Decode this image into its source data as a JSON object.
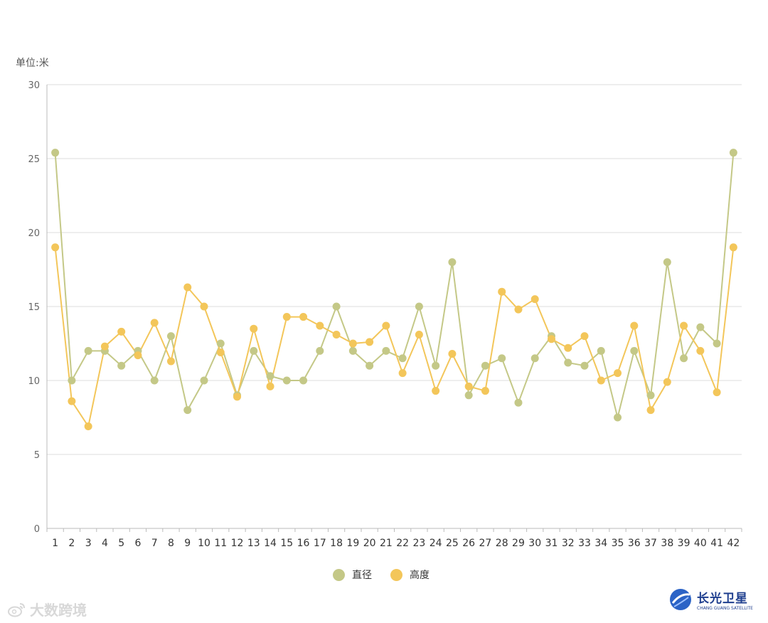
{
  "unit_label": "单位:米",
  "legend": [
    {
      "label": "直径",
      "color": "#c4c887"
    },
    {
      "label": "高度",
      "color": "#f3c65a"
    }
  ],
  "watermark_left": {
    "text": "大数跨境",
    "icon": "weibo-icon"
  },
  "watermark_right": {
    "text": "长光卫星",
    "subtext": "CHANG GUANG SATELLITE",
    "icon": "satellite-logo-icon"
  },
  "chart_data": {
    "type": "line",
    "title": "",
    "xlabel": "",
    "ylabel": "单位:米",
    "categories": [
      "1",
      "2",
      "3",
      "4",
      "5",
      "6",
      "7",
      "8",
      "9",
      "10",
      "11",
      "12",
      "13",
      "14",
      "15",
      "16",
      "17",
      "18",
      "19",
      "20",
      "21",
      "22",
      "23",
      "24",
      "25",
      "26",
      "27",
      "28",
      "29",
      "30",
      "31",
      "32",
      "33",
      "34",
      "35",
      "36",
      "37",
      "38",
      "39",
      "40",
      "41",
      "42"
    ],
    "ylim": [
      0,
      30
    ],
    "yticks": [
      0,
      5,
      10,
      15,
      20,
      25,
      30
    ],
    "grid": true,
    "legend_position": "bottom",
    "series": [
      {
        "name": "直径",
        "color": "#c4c887",
        "values": [
          25.4,
          10,
          12,
          12,
          11,
          12,
          10,
          13,
          8,
          10,
          12.5,
          9,
          12,
          10.3,
          10,
          10,
          12,
          15,
          12,
          11,
          12,
          11.5,
          15,
          11,
          18,
          9,
          11,
          11.5,
          8.5,
          11.5,
          13,
          11.2,
          11,
          12,
          7.5,
          12,
          9,
          18,
          11.5,
          13.6,
          12.5,
          25.4
        ]
      },
      {
        "name": "高度",
        "color": "#f3c65a",
        "values": [
          19,
          8.6,
          6.9,
          12.3,
          13.3,
          11.7,
          13.9,
          11.3,
          16.3,
          15,
          11.9,
          8.9,
          13.5,
          9.6,
          14.3,
          14.3,
          13.7,
          13.1,
          12.5,
          12.6,
          13.7,
          10.5,
          13.1,
          9.3,
          11.8,
          9.6,
          9.3,
          16,
          14.8,
          15.5,
          12.8,
          12.2,
          13,
          10,
          10.5,
          13.7,
          8,
          9.9,
          13.7,
          12,
          9.2,
          19
        ]
      }
    ]
  }
}
